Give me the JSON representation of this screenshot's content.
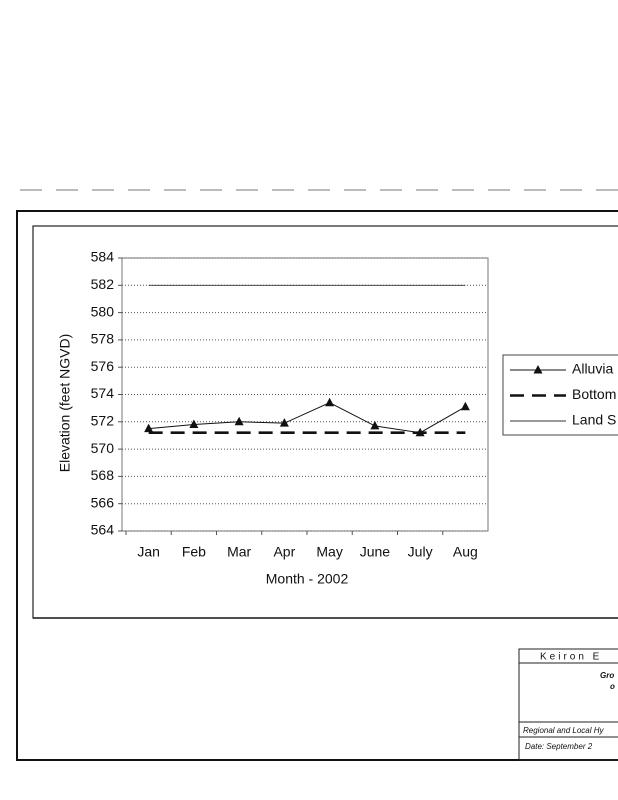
{
  "chart_data": {
    "type": "line",
    "y_label": "Elevation (feet NGVD)",
    "x_label": "Month - 2002",
    "categories": [
      "Jan",
      "Feb",
      "Mar",
      "Apr",
      "May",
      "June",
      "July",
      "Aug"
    ],
    "series": [
      {
        "name": "Alluvia",
        "color": "#111111",
        "style": "marker",
        "values": [
          571.5,
          571.8,
          572.0,
          571.9,
          573.4,
          571.7,
          571.2,
          573.1
        ]
      },
      {
        "name": "Bottom",
        "color": "#111111",
        "style": "dashed",
        "values": [
          571.2,
          571.2,
          571.2,
          571.2,
          571.2,
          571.2,
          571.2,
          571.2
        ]
      },
      {
        "name": "Land S",
        "color": "#333333",
        "style": "thin",
        "values": [
          582,
          582,
          582,
          582,
          582,
          582,
          582,
          582
        ]
      }
    ],
    "ylim": [
      564,
      584
    ],
    "yticks": [
      564,
      566,
      568,
      570,
      572,
      574,
      576,
      578,
      580,
      582,
      584
    ],
    "grid": true,
    "legend": "right"
  },
  "title_block": {
    "company": "Keiron E",
    "line1": "Gro",
    "line2": "o",
    "line3": "Regional and Local Hy",
    "date": "Date: September 2"
  }
}
